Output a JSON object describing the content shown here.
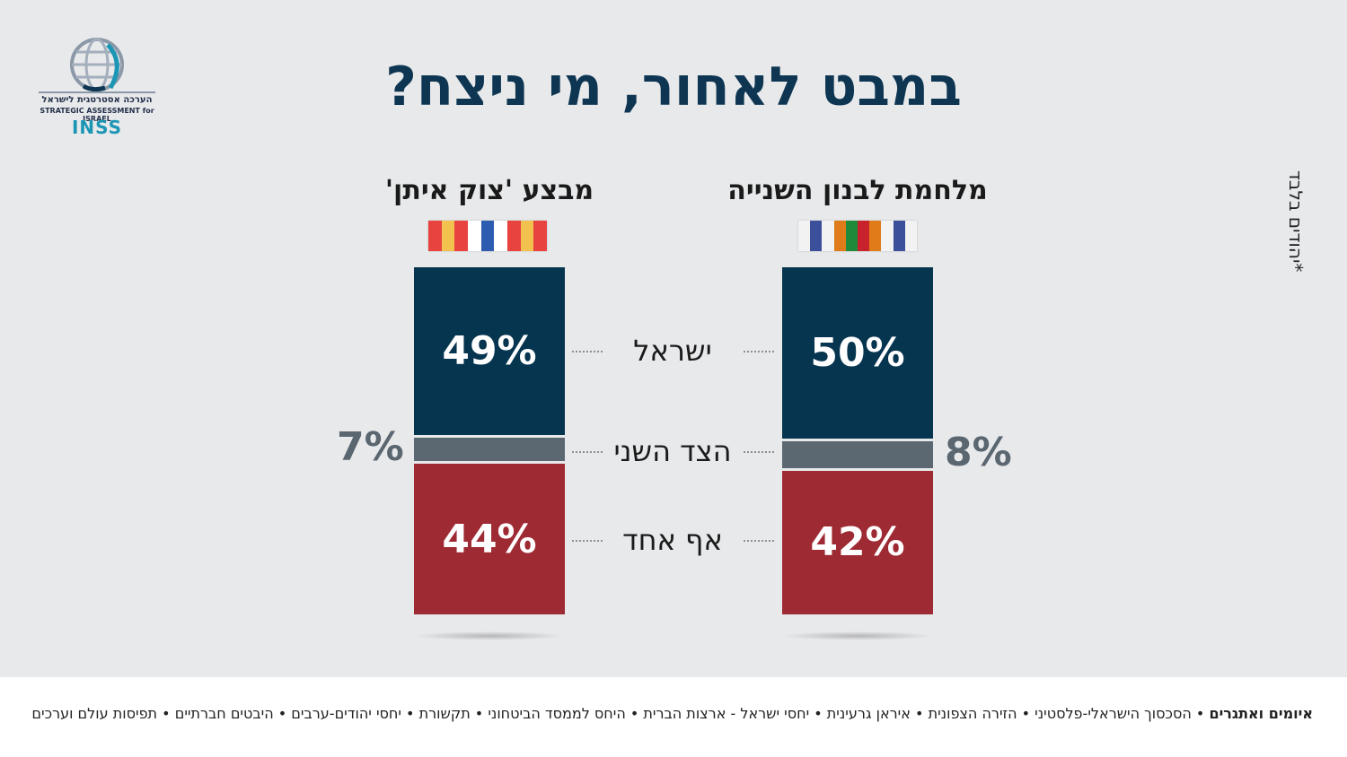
{
  "title": "במבט לאחור, מי ניצח?",
  "logo": {
    "hebrew": "הערכה אסטרטגית לישראל",
    "english": "STRATEGIC ASSESSMENT for ISRAEL",
    "brand": "INSS",
    "icon": "globe-icon"
  },
  "footnote": "*יהודים בלבד",
  "chart_data": {
    "type": "bar",
    "stacked": true,
    "categories": [
      "ישראל",
      "הצד השני",
      "אף אחד"
    ],
    "series": [
      {
        "name": "מלחמת לבנון השנייה",
        "values": [
          50,
          8,
          42
        ],
        "labels": [
          "50%",
          "8%",
          "42%"
        ],
        "ribbon_colors": [
          "#f2f2f2",
          "#3b4f9a",
          "#f2f2f2",
          "#e07b1a",
          "#1f8a3a",
          "#c8232c",
          "#e07b1a",
          "#f2f2f2",
          "#3b4f9a",
          "#f2f2f2"
        ]
      },
      {
        "name": "מבצע 'צוק איתן'",
        "values": [
          49,
          7,
          44
        ],
        "labels": [
          "49%",
          "7%",
          "44%"
        ],
        "ribbon_colors": [
          "#e8433f",
          "#f2c14e",
          "#e8433f",
          "#ffffff",
          "#2d5db0",
          "#ffffff",
          "#e8433f",
          "#f2c14e",
          "#e8433f"
        ]
      }
    ],
    "colors": {
      "ישראל": "#06354f",
      "הצד השני": "#5b6871",
      "אף אחד": "#9e2a33"
    }
  },
  "footer": {
    "bold_item": "איומים ואתגרים",
    "items": [
      "הסכסוך הישראלי-פלסטיני",
      "הזירה הצפונית",
      "איראן גרעינית",
      "יחסי ישראל - ארצות הברית",
      "היחס לממסד הביטחוני",
      "תקשורת",
      "יחסי יהודים-ערבים",
      "היבטים חברתיים",
      "תפיסות עולם וערכים"
    ]
  }
}
